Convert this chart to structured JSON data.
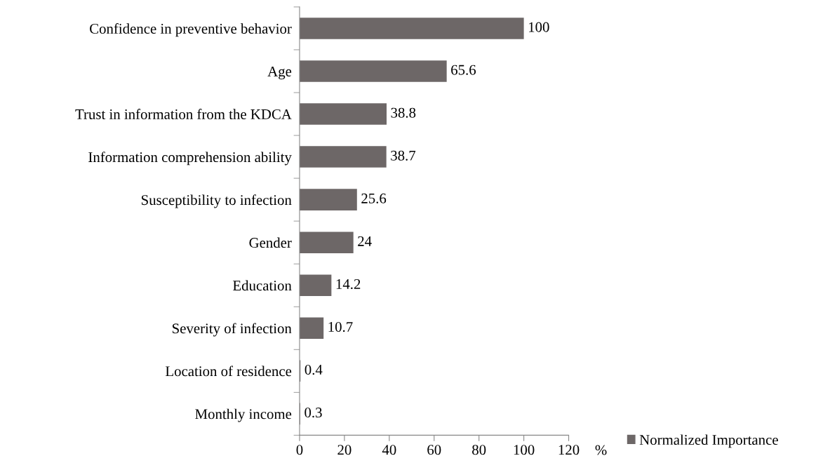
{
  "chart_data": {
    "type": "bar",
    "orientation": "horizontal",
    "categories": [
      "Confidence in preventive behavior",
      "Age",
      "Trust in information from the KDCA",
      "Information comprehension ability",
      "Susceptibility to infection",
      "Gender",
      "Education",
      "Severity of infection",
      "Location of residence",
      "Monthly income"
    ],
    "series": [
      {
        "name": "Normalized Importance",
        "color": "#6d6767",
        "values": [
          100,
          65.6,
          38.8,
          38.7,
          25.6,
          24,
          14.2,
          10.7,
          0.4,
          0.3
        ]
      }
    ],
    "xlabel": "%",
    "xlim": [
      0,
      120
    ],
    "xticks": [
      0,
      20,
      40,
      60,
      80,
      100,
      120
    ],
    "data_labels": true,
    "grid": false,
    "legend": "bottom right"
  }
}
